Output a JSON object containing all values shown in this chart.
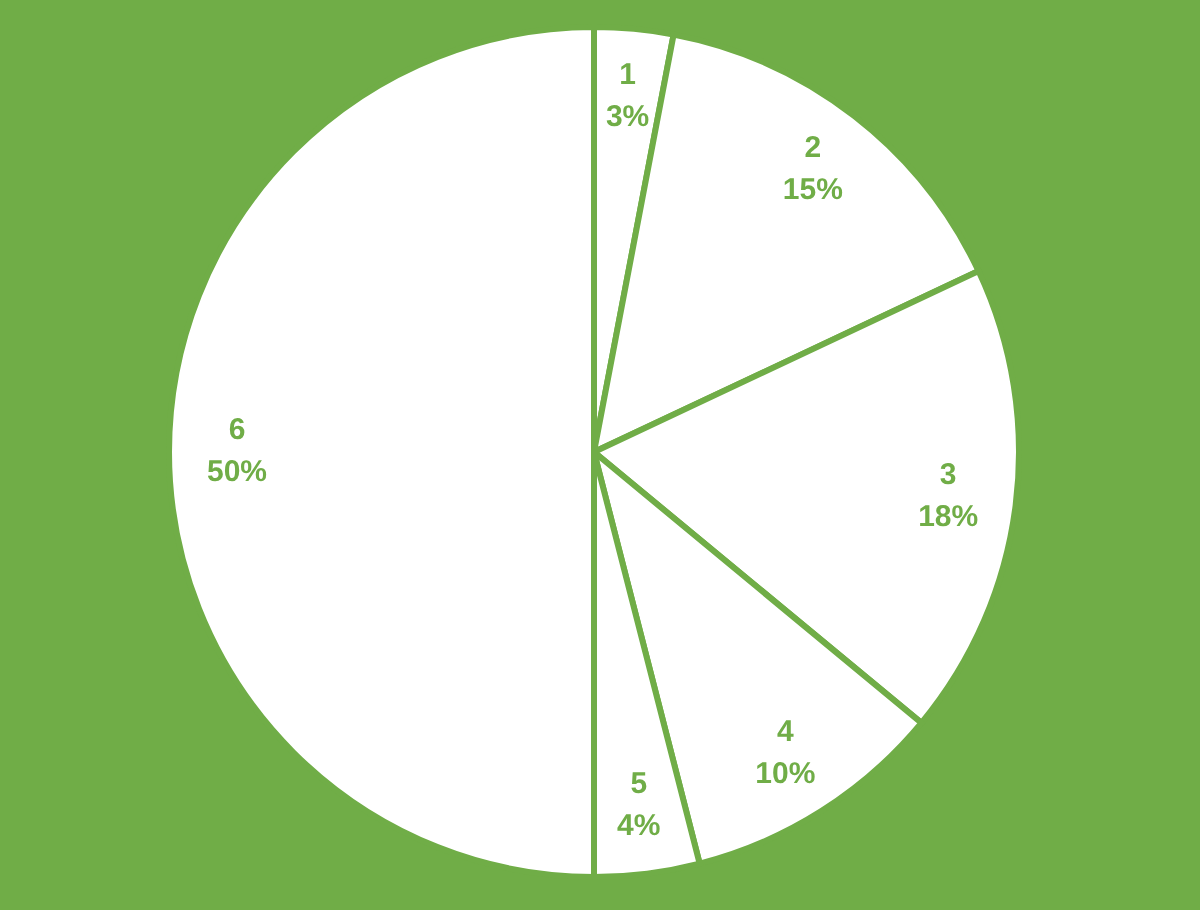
{
  "chart_data": {
    "type": "pie",
    "categories": [
      "1",
      "2",
      "3",
      "4",
      "5",
      "6"
    ],
    "values": [
      3,
      15,
      18,
      10,
      4,
      50
    ],
    "value_labels": [
      "3%",
      "15%",
      "18%",
      "10%",
      "4%",
      "50%"
    ],
    "colors": [
      "#ffffff",
      "#ffffff",
      "#ffffff",
      "#ffffff",
      "#ffffff",
      "#ffffff"
    ]
  }
}
